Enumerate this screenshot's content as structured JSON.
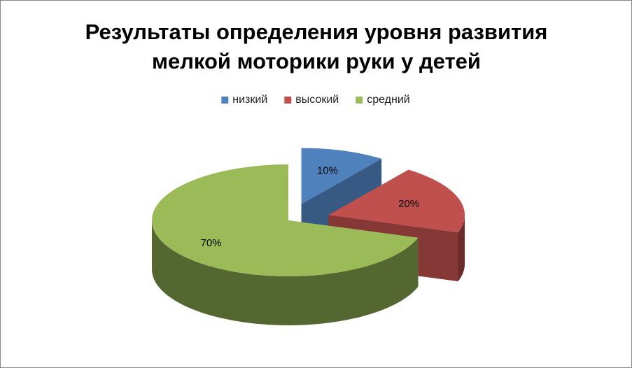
{
  "chart_data": {
    "type": "pie3d",
    "title": [
      "Результаты определения уровня развития",
      "мелкой моторики руки у детей"
    ],
    "categories": [
      "низкий",
      "высокий",
      "средний"
    ],
    "values": [
      10,
      20,
      70
    ],
    "value_labels": [
      "10%",
      "20%",
      "70%"
    ],
    "colors": [
      "#4f81bd",
      "#c0504d",
      "#9bbb59"
    ],
    "legend": "top"
  }
}
